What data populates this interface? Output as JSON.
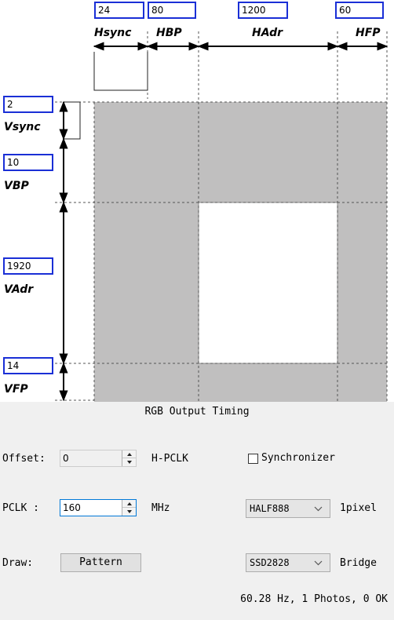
{
  "timing": {
    "hsync": "24",
    "hbp": "80",
    "hadr": "1200",
    "hfp": "60",
    "vsync": "2",
    "vbp": "10",
    "vadr": "1920",
    "vfp": "14"
  },
  "labels": {
    "hsync": "Hsync",
    "hbp": "HBP",
    "hadr": "HAdr",
    "hfp": "HFP",
    "vsync": "Vsync",
    "vbp": "VBP",
    "vadr": "VAdr",
    "vfp": "VFP"
  },
  "title": "RGB Output Timing",
  "offset": {
    "label": "Offset:",
    "value": "0",
    "unit": "H-PCLK"
  },
  "synchronizer": {
    "label": "Synchronizer",
    "checked": false
  },
  "pclk": {
    "label": "PCLK :",
    "value": "160",
    "unit": "MHz"
  },
  "format": {
    "selected": "HALF888",
    "suffix": "1pixel"
  },
  "draw": {
    "label": "Draw:",
    "button": "Pattern"
  },
  "bridge": {
    "selected": "SSD2828",
    "suffix": "Bridge"
  },
  "status": "60.28 Hz, 1 Photos, 0 OK",
  "colors": {
    "accent": "#1a2fd6",
    "blanking": "#c0bfbf",
    "active": "#ffffff"
  },
  "icons": {
    "spin_up": "triangle-up-icon",
    "spin_down": "triangle-down-icon",
    "dropdown": "chevron-down-icon"
  }
}
